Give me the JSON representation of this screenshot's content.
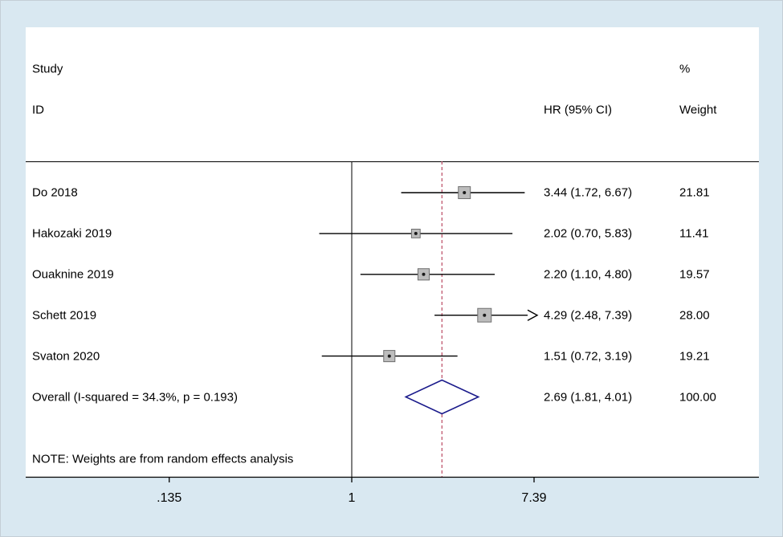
{
  "chart_data": {
    "type": "forest",
    "title": "",
    "columns": {
      "study_header_line1": "Study",
      "study_header_line2": "ID",
      "hr_header": "HR (95% CI)",
      "weight_header_line1": "%",
      "weight_header_line2": "Weight"
    },
    "note": "NOTE: Weights are from random effects analysis",
    "x_scale": "log",
    "x_ticks": [
      {
        "label": ".135",
        "value": 0.135
      },
      {
        "label": "1",
        "value": 1
      },
      {
        "label": "7.39",
        "value": 7.39
      }
    ],
    "ref_line": 1,
    "overall_line": 2.69,
    "studies": [
      {
        "id": "Do 2018",
        "hr": 3.44,
        "ci_low": 1.72,
        "ci_high": 6.67,
        "hr_text": "3.44 (1.72, 6.67)",
        "weight": "21.81",
        "weight_value": 21.81,
        "clipped_high": false
      },
      {
        "id": "Hakozaki 2019",
        "hr": 2.02,
        "ci_low": 0.7,
        "ci_high": 5.83,
        "hr_text": "2.02 (0.70, 5.83)",
        "weight": "11.41",
        "weight_value": 11.41,
        "clipped_high": false
      },
      {
        "id": "Ouaknine 2019",
        "hr": 2.2,
        "ci_low": 1.1,
        "ci_high": 4.8,
        "hr_text": "2.20 (1.10, 4.80)",
        "weight": "19.57",
        "weight_value": 19.57,
        "clipped_high": false
      },
      {
        "id": "Schett 2019",
        "hr": 4.29,
        "ci_low": 2.48,
        "ci_high": 7.39,
        "hr_text": "4.29 (2.48, 7.39)",
        "weight": "28.00",
        "weight_value": 28.0,
        "clipped_high": true
      },
      {
        "id": "Svaton 2020",
        "hr": 1.51,
        "ci_low": 0.72,
        "ci_high": 3.19,
        "hr_text": "1.51 (0.72, 3.19)",
        "weight": "19.21",
        "weight_value": 19.21,
        "clipped_high": false
      }
    ],
    "overall": {
      "id": "Overall  (I-squared = 34.3%, p = 0.193)",
      "hr": 2.69,
      "ci_low": 1.81,
      "ci_high": 4.01,
      "hr_text": "2.69 (1.81, 4.01)",
      "weight": "100.00",
      "weight_value": 100.0
    }
  },
  "colors": {
    "background": "#d9e8f1",
    "plot_bg": "#ffffff",
    "marker_fill": "#bdbdbd",
    "marker_border": "#6e6e6e",
    "marker_dot": "#1a1a1a",
    "diamond_stroke": "#1a1a8b",
    "diamond_fill": "#ffffff",
    "ref_line": "#000000",
    "overall_dashed": "#bb4a62",
    "axis_line": "#000000",
    "text": "#000000"
  }
}
